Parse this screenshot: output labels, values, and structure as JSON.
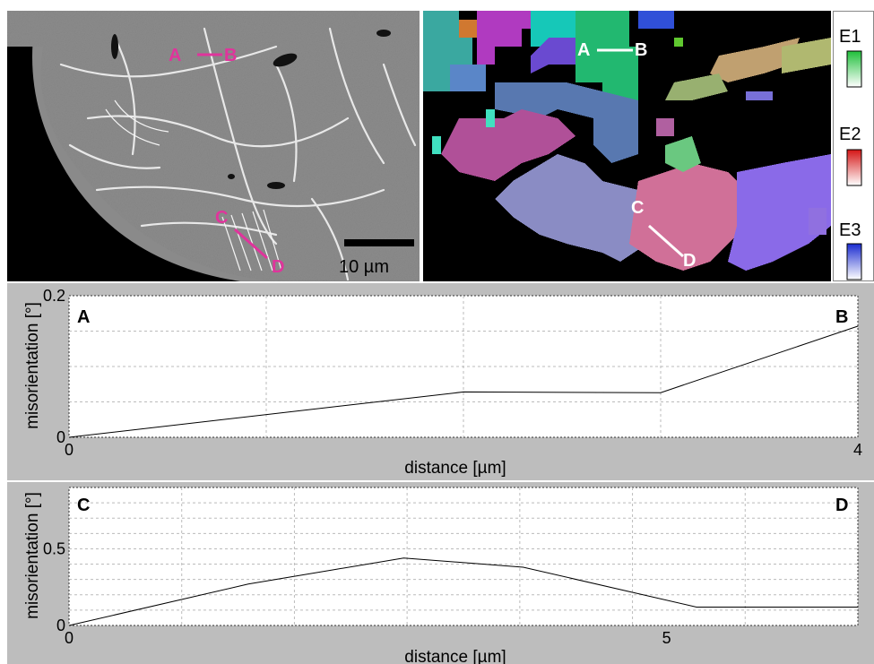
{
  "micrograph": {
    "markers": [
      "A",
      "B",
      "C",
      "D"
    ],
    "scale_bar_label": "10 µm"
  },
  "orientation_map": {
    "markers": [
      "A",
      "B",
      "C",
      "D"
    ]
  },
  "legend": {
    "items": [
      {
        "label": "E1",
        "color": "#1fbf3a"
      },
      {
        "label": "E2",
        "color": "#d41515"
      },
      {
        "label": "E3",
        "color": "#1a2bd0"
      }
    ]
  },
  "colors": {
    "marker_pink": "#e0349c",
    "plot_frame_bg": "#bdbdbd"
  },
  "chart_data": [
    {
      "type": "line",
      "xlabel": "distance [µm]",
      "ylabel": "misorientation [°]",
      "xlim": [
        0,
        4
      ],
      "ylim": [
        0,
        0.2
      ],
      "x_ticks": [
        "0",
        "4"
      ],
      "y_ticks": [
        "0",
        "0.2"
      ],
      "grid": true,
      "start_label": "A",
      "end_label": "B",
      "x": [
        0,
        2.0,
        3.0,
        4.0
      ],
      "y": [
        0,
        0.064,
        0.063,
        0.157
      ]
    },
    {
      "type": "line",
      "xlabel": "distance [µm]",
      "ylabel": "misorientation [°]",
      "xlim": [
        0,
        6.6
      ],
      "ylim": [
        0,
        0.9
      ],
      "x_ticks": [
        "0",
        "5"
      ],
      "y_ticks": [
        "0",
        "0.5"
      ],
      "grid": true,
      "start_label": "C",
      "end_label": "D",
      "x": [
        0,
        1.5,
        2.8,
        3.8,
        5.25,
        6.6
      ],
      "y": [
        0,
        0.27,
        0.44,
        0.38,
        0.12,
        0.12
      ]
    }
  ]
}
